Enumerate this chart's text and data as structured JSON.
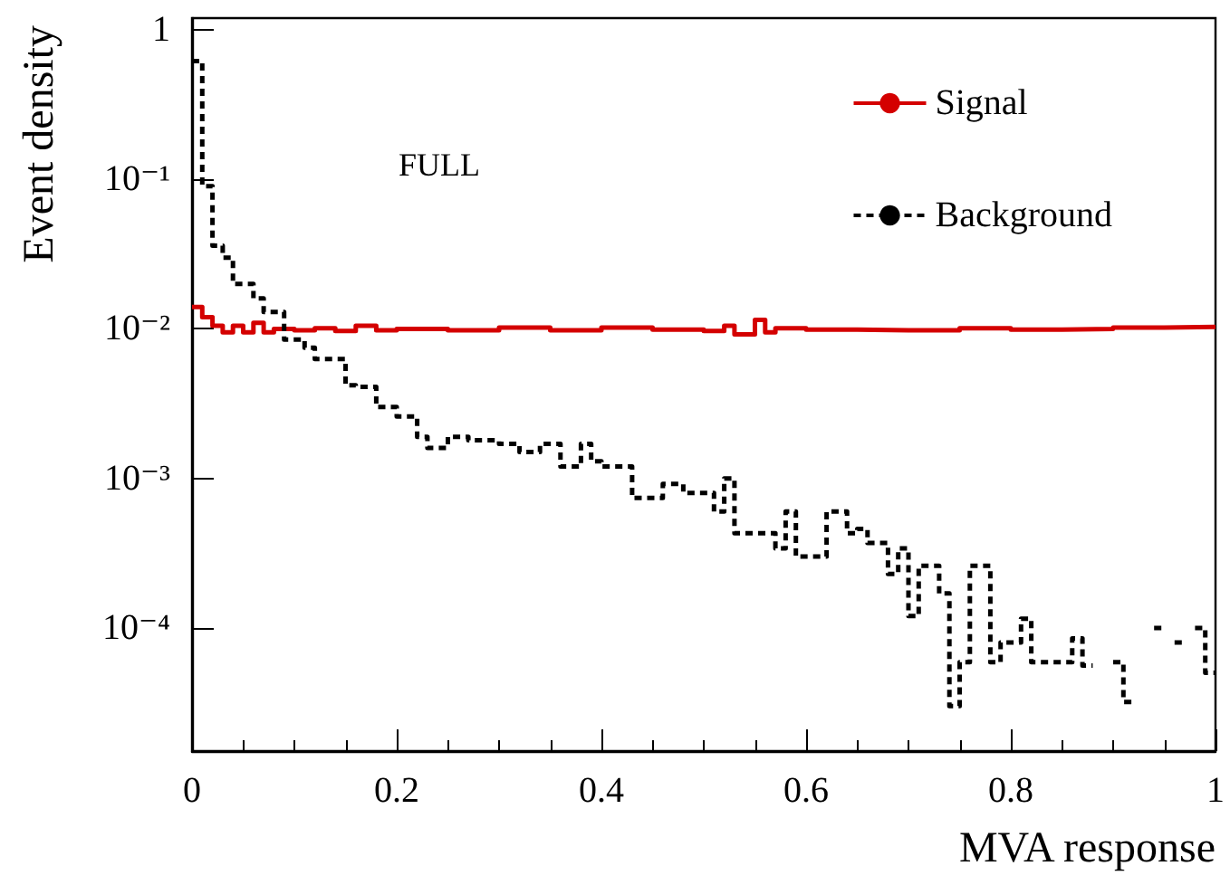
{
  "chart_data": {
    "type": "step",
    "xlabel": "MVA response",
    "ylabel": "Event density",
    "annotations": [
      "FULL"
    ],
    "series": [
      {
        "name": "Signal",
        "color": "#d40000",
        "line_style": "solid",
        "x": [
          0,
          0.01,
          0.02,
          0.03,
          0.04,
          0.05,
          0.06,
          0.07,
          0.08,
          0.1,
          0.12,
          0.14,
          0.16,
          0.18,
          0.2,
          0.25,
          0.3,
          0.35,
          0.4,
          0.45,
          0.5,
          0.52,
          0.53,
          0.55,
          0.56,
          0.57,
          0.6,
          0.65,
          0.7,
          0.75,
          0.8,
          0.85,
          0.9,
          0.95,
          1.0
        ],
        "values": [
          0.014,
          0.012,
          0.0105,
          0.0095,
          0.0105,
          0.0095,
          0.011,
          0.0095,
          0.01,
          0.0098,
          0.0101,
          0.0097,
          0.0105,
          0.0098,
          0.01,
          0.0098,
          0.0102,
          0.0098,
          0.0102,
          0.0099,
          0.0097,
          0.0105,
          0.0092,
          0.0115,
          0.0095,
          0.0101,
          0.0099,
          0.0098,
          0.0098,
          0.0101,
          0.0099,
          0.01,
          0.0102,
          0.0103,
          0.0103
        ]
      },
      {
        "name": "Background",
        "color": "#000000",
        "line_style": "dashed",
        "x": [
          0,
          0.01,
          0.02,
          0.03,
          0.04,
          0.06,
          0.07,
          0.09,
          0.11,
          0.12,
          0.15,
          0.16,
          0.18,
          0.2,
          0.22,
          0.23,
          0.25,
          0.27,
          0.3,
          0.32,
          0.34,
          0.36,
          0.38,
          0.39,
          0.4,
          0.43,
          0.46,
          0.48,
          0.51,
          0.52,
          0.53,
          0.57,
          0.58,
          0.59,
          0.61,
          0.62,
          0.64,
          0.65,
          0.66,
          0.68,
          0.69,
          0.7,
          0.71,
          0.73,
          0.74,
          0.75,
          0.76,
          0.78,
          0.79,
          0.81,
          0.82,
          0.86,
          0.87,
          0.88,
          0.9,
          0.91,
          0.92,
          0.94,
          0.95,
          0.96,
          0.97,
          0.98,
          0.99,
          1.0
        ],
        "values": [
          0.62,
          0.09,
          0.036,
          0.03,
          0.02,
          0.016,
          0.013,
          0.0085,
          0.0075,
          0.0063,
          0.0042,
          0.0041,
          0.003,
          0.0026,
          0.0019,
          0.0016,
          0.0019,
          0.0018,
          0.0017,
          0.0015,
          0.0017,
          0.0012,
          0.0017,
          0.0013,
          0.0012,
          0.00074,
          0.00092,
          0.0008,
          0.0006,
          0.001,
          0.00043,
          0.00034,
          0.0006,
          0.0003,
          0.0003,
          0.0006,
          0.00043,
          0.00046,
          0.00037,
          0.00023,
          0.00034,
          0.00012,
          0.00026,
          0.00017,
          3e-05,
          5.9e-05,
          0.00026,
          5.9e-05,
          8e-05,
          0.000115,
          5.9e-05,
          8.5e-05,
          5.6e-05,
          null,
          5.9e-05,
          3.2e-05,
          null,
          0.0001,
          null,
          8e-05,
          null,
          0.0001,
          5e-05,
          5e-05
        ]
      }
    ],
    "xlim": [
      0,
      1
    ],
    "xticks": [
      0,
      0.2,
      0.4,
      0.6,
      0.8,
      {
        "value": 1,
        "label": "1"
      }
    ],
    "ylim": [
      1.5e-05,
      1.2
    ],
    "log": "y",
    "yticks": [
      {
        "value": 0.0001,
        "label": "10⁻⁴"
      },
      {
        "value": 0.001,
        "label": "10⁻³"
      },
      {
        "value": 0.01,
        "label": "10⁻²"
      },
      {
        "value": 0.1,
        "label": "10⁻¹"
      },
      1
    ],
    "grid": false,
    "legend": "top right"
  }
}
